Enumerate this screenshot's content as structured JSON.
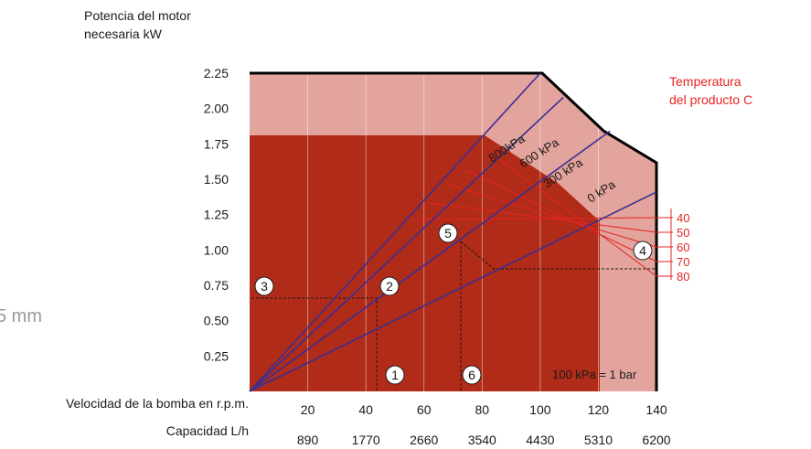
{
  "chart_data": {
    "type": "line",
    "title": "",
    "ylabel_lines": [
      "Potencia del motor",
      "necesaria kW"
    ],
    "xlabel_speed": "Velocidad de la bomba en r.p.m.",
    "xlabel_capacity": "Capacidad L/h",
    "y_ticks": [
      "0.25",
      "0.50",
      "0.75",
      "1.00",
      "1.25",
      "1.50",
      "1.75",
      "2.00",
      "2.25"
    ],
    "x_speed_ticks": [
      "20",
      "40",
      "60",
      "80",
      "100",
      "120",
      "140"
    ],
    "x_capacity_ticks": [
      "890",
      "1770",
      "2660",
      "3540",
      "4430",
      "5310",
      "6200"
    ],
    "xlim": [
      0,
      140
    ],
    "ylim": [
      0,
      2.25
    ],
    "series": [
      {
        "name": "800kPa",
        "x": [
          0,
          100
        ],
        "y": [
          0,
          2.25
        ]
      },
      {
        "name": "600 kPa",
        "x": [
          0,
          108
        ],
        "y": [
          0,
          2.08
        ]
      },
      {
        "name": "300 kPa",
        "x": [
          0,
          124
        ],
        "y": [
          0,
          1.84
        ]
      },
      {
        "name": "0 kPa",
        "x": [
          0,
          140
        ],
        "y": [
          0,
          1.41
        ]
      }
    ],
    "temperature_title_lines": [
      "Temperatura",
      "del producto C"
    ],
    "temperature_labels": [
      "40",
      "50",
      "60",
      "70",
      "80"
    ],
    "markers": [
      "1",
      "2",
      "3",
      "4",
      "5",
      "6"
    ],
    "note": "100 kPa = 1 bar",
    "left_fragment": "5 mm"
  }
}
